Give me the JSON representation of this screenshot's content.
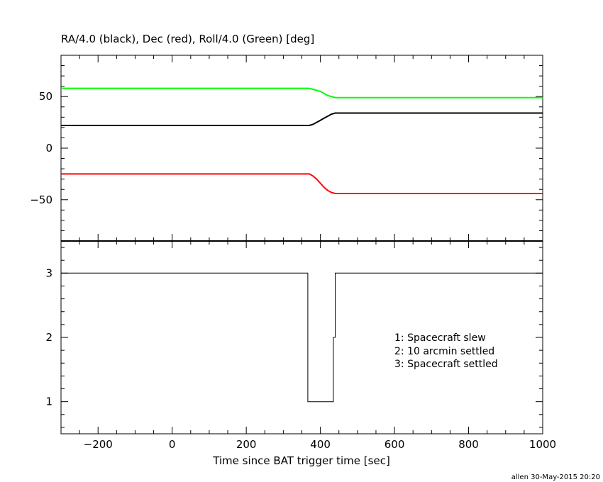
{
  "chart_data": [
    {
      "type": "line",
      "title": "RA/4.0 (black), Dec (red), Roll/4.0 (Green) [deg]",
      "xlim": [
        -300,
        1000
      ],
      "ylim": [
        -90,
        90
      ],
      "yticks": [
        -50,
        0,
        50
      ],
      "series": [
        {
          "color": "#000000",
          "x": [
            -300,
            360,
            370,
            380,
            390,
            400,
            410,
            420,
            430,
            440,
            1000
          ],
          "y": [
            22,
            22,
            22,
            23,
            25,
            27,
            29,
            31,
            33,
            34,
            34
          ]
        },
        {
          "color": "#ff0000",
          "x": [
            -300,
            360,
            370,
            380,
            390,
            400,
            410,
            420,
            430,
            440,
            1000
          ],
          "y": [
            -25,
            -25,
            -25,
            -27,
            -30,
            -34,
            -38,
            -41,
            -43,
            -44,
            -44
          ]
        },
        {
          "color": "#00ff00",
          "x": [
            -300,
            360,
            370,
            380,
            390,
            400,
            410,
            420,
            430,
            440,
            1000
          ],
          "y": [
            58,
            58,
            58,
            57,
            56,
            55,
            53,
            51,
            50,
            49,
            49
          ]
        }
      ]
    },
    {
      "type": "line",
      "xlabel": "Time since BAT trigger time [sec]",
      "xlim": [
        -300,
        1000
      ],
      "ylim": [
        0.5,
        3.5
      ],
      "xticks": [
        -200,
        0,
        200,
        400,
        600,
        800,
        1000
      ],
      "yticks": [
        1,
        2,
        3
      ],
      "series": [
        {
          "color": "#000000",
          "x": [
            -300,
            366,
            366,
            435,
            435,
            440,
            440,
            1000,
            1000
          ],
          "y": [
            3,
            3,
            1,
            1,
            2,
            2,
            3,
            3,
            1
          ]
        }
      ],
      "legend": [
        "1: Spacecraft slew",
        "2: 10 arcmin settled",
        "3: Spacecraft settled"
      ]
    }
  ],
  "footer": "allen 30-May-2015 20:20"
}
